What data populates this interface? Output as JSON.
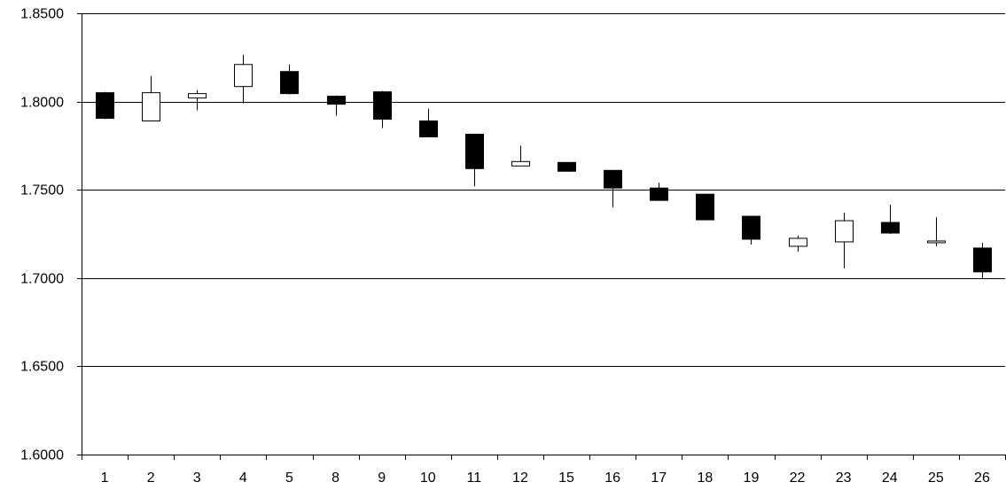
{
  "chart_data": {
    "type": "candlestick",
    "title": "",
    "xlabel": "",
    "ylabel": "",
    "ylim": [
      1.6,
      1.85
    ],
    "y_ticks": [
      "1.6000",
      "1.6500",
      "1.7000",
      "1.7500",
      "1.8000",
      "1.8500"
    ],
    "grid": true,
    "legend": "none",
    "colors": {
      "up_fill": "#ffffff",
      "down_fill": "#000000",
      "stroke": "#000000",
      "grid": "#000000"
    },
    "categories": [
      "1",
      "2",
      "3",
      "4",
      "5",
      "8",
      "9",
      "10",
      "11",
      "12",
      "15",
      "16",
      "17",
      "18",
      "19",
      "22",
      "23",
      "24",
      "25",
      "26"
    ],
    "candles": [
      {
        "x": "1",
        "open": 1.805,
        "high": 1.8055,
        "low": 1.79,
        "close": 1.7905
      },
      {
        "x": "2",
        "open": 1.789,
        "high": 1.8145,
        "low": 1.789,
        "close": 1.805
      },
      {
        "x": "3",
        "open": 1.802,
        "high": 1.8065,
        "low": 1.795,
        "close": 1.8045
      },
      {
        "x": "4",
        "open": 1.8085,
        "high": 1.8265,
        "low": 1.799,
        "close": 1.821
      },
      {
        "x": "5",
        "open": 1.817,
        "high": 1.821,
        "low": 1.804,
        "close": 1.8045
      },
      {
        "x": "8",
        "open": 1.803,
        "high": 1.8035,
        "low": 1.792,
        "close": 1.7985
      },
      {
        "x": "9",
        "open": 1.8055,
        "high": 1.806,
        "low": 1.785,
        "close": 1.79
      },
      {
        "x": "10",
        "open": 1.789,
        "high": 1.796,
        "low": 1.78,
        "close": 1.78
      },
      {
        "x": "11",
        "open": 1.7815,
        "high": 1.7815,
        "low": 1.752,
        "close": 1.762
      },
      {
        "x": "12",
        "open": 1.7635,
        "high": 1.775,
        "low": 1.7635,
        "close": 1.766
      },
      {
        "x": "15",
        "open": 1.7655,
        "high": 1.7655,
        "low": 1.7605,
        "close": 1.7605
      },
      {
        "x": "16",
        "open": 1.761,
        "high": 1.761,
        "low": 1.74,
        "close": 1.751
      },
      {
        "x": "17",
        "open": 1.751,
        "high": 1.754,
        "low": 1.744,
        "close": 1.744
      },
      {
        "x": "18",
        "open": 1.7475,
        "high": 1.7475,
        "low": 1.733,
        "close": 1.733
      },
      {
        "x": "19",
        "open": 1.735,
        "high": 1.735,
        "low": 1.719,
        "close": 1.722
      },
      {
        "x": "22",
        "open": 1.718,
        "high": 1.724,
        "low": 1.715,
        "close": 1.7225
      },
      {
        "x": "23",
        "open": 1.7205,
        "high": 1.737,
        "low": 1.7055,
        "close": 1.7325
      },
      {
        "x": "24",
        "open": 1.7315,
        "high": 1.7415,
        "low": 1.725,
        "close": 1.7255
      },
      {
        "x": "25",
        "open": 1.72,
        "high": 1.7345,
        "low": 1.718,
        "close": 1.721
      },
      {
        "x": "26",
        "open": 1.717,
        "high": 1.72,
        "low": 1.6995,
        "close": 1.7035
      }
    ]
  }
}
